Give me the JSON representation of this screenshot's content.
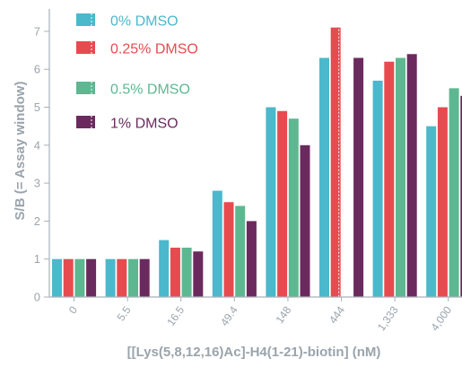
{
  "chart_data": {
    "type": "bar",
    "title": "",
    "xlabel": "[[Lys(5,8,12,16)Ac]-H4(1-21)-biotin] (nM)",
    "ylabel": "S/B (= Assay window)",
    "categories": [
      "0",
      "5.5",
      "16.5",
      "49.4",
      "148",
      "444",
      "1,333",
      "4,000"
    ],
    "ylim": [
      0,
      7.5
    ],
    "yticks": [
      0,
      1,
      2,
      3,
      4,
      5,
      6,
      7
    ],
    "grid": "none",
    "legend_position": "top-left",
    "series": [
      {
        "name": "0% DMSO",
        "color": "#4bb8cc",
        "values": [
          1.0,
          1.0,
          1.5,
          2.8,
          5.0,
          6.3,
          5.7,
          4.5
        ]
      },
      {
        "name": "0.25% DMSO",
        "color": "#e64b50",
        "values": [
          1.0,
          1.0,
          1.3,
          2.5,
          4.9,
          7.1,
          6.2,
          5.0
        ]
      },
      {
        "name": "0.5% DMSO",
        "color": "#5db891",
        "values": [
          1.0,
          1.0,
          1.3,
          2.4,
          4.7,
          null,
          6.3,
          5.5
        ]
      },
      {
        "name": "1% DMSO",
        "color": "#6b2a5e",
        "values": [
          1.0,
          1.0,
          1.2,
          2.0,
          4.0,
          6.3,
          6.4,
          5.3
        ]
      }
    ]
  }
}
